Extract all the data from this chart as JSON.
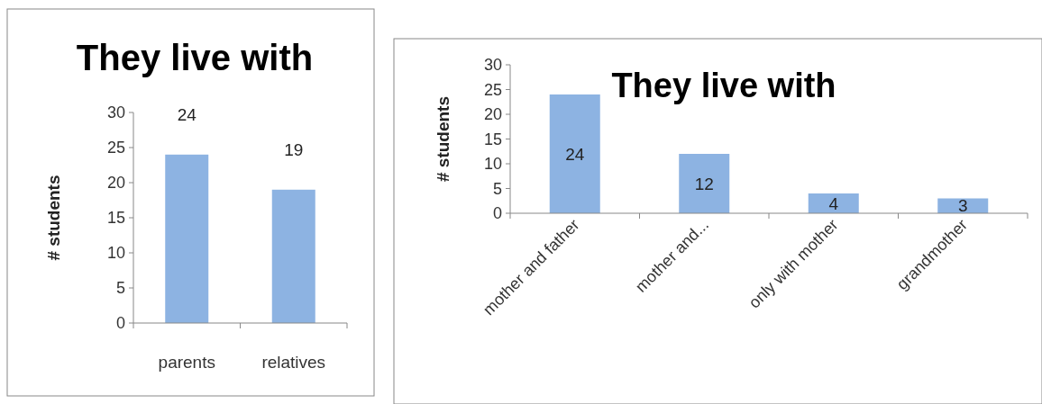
{
  "chart_data": [
    {
      "type": "bar",
      "title": "They live with",
      "ylabel": "# students",
      "categories": [
        "parents",
        "relatives"
      ],
      "values": [
        24,
        19
      ],
      "color": "#8db3e2",
      "ylim": [
        0,
        30
      ],
      "yticks": [
        0,
        5,
        10,
        15,
        20,
        25,
        30
      ],
      "data_labels": true
    },
    {
      "type": "bar",
      "title": "They live with",
      "ylabel": "# students",
      "categories": [
        "mother and father",
        "mother and...",
        "only with mother",
        "grandmother"
      ],
      "values": [
        24,
        12,
        4,
        3
      ],
      "color": "#8db3e2",
      "ylim": [
        0,
        30
      ],
      "yticks": [
        0,
        5,
        10,
        15,
        20,
        25,
        30
      ],
      "data_labels": true
    }
  ]
}
